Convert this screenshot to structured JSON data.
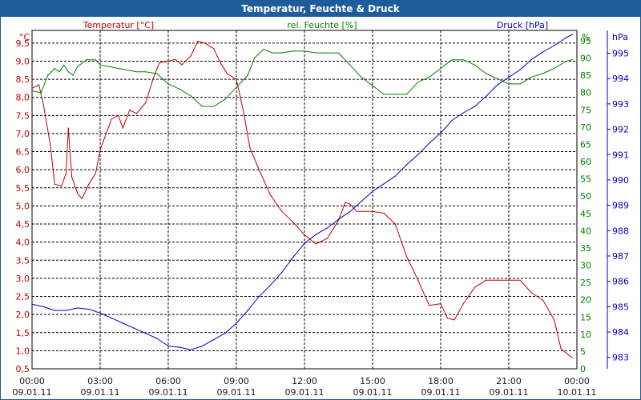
{
  "window": {
    "title": "Temperatur, Feuchte & Druck"
  },
  "chart_data": {
    "type": "line",
    "title": "Temperatur, Feuchte & Druck",
    "colors": {
      "temp": "#c00000",
      "humid": "#008000",
      "press": "#0000c0",
      "title_bg": "#1f5c9a"
    },
    "x_labels": [
      {
        "time": "00:00",
        "date": "09.01.11"
      },
      {
        "time": "03:00",
        "date": "09.01.11"
      },
      {
        "time": "06:00",
        "date": "09.01.11"
      },
      {
        "time": "09:00",
        "date": "09.01.11"
      },
      {
        "time": "12:00",
        "date": "09.01.11"
      },
      {
        "time": "15:00",
        "date": "09.01.11"
      },
      {
        "time": "18:00",
        "date": "09.01.11"
      },
      {
        "time": "21:00",
        "date": "09.01.11"
      },
      {
        "time": "00:00",
        "date": "10.01.11"
      }
    ],
    "x_range_hours": [
      0,
      24
    ],
    "axes": {
      "temp": {
        "unit": "°C",
        "label": "Temperatur [°C]",
        "range": [
          0.5,
          9.85
        ],
        "ticks": [
          "9,5",
          "9,0",
          "8,5",
          "8,0",
          "7,5",
          "7,0",
          "6,5",
          "6,0",
          "5,5",
          "5,0",
          "4,5",
          "4,0",
          "3,5",
          "3,0",
          "2,5",
          "2,0",
          "1,5",
          "1,0",
          "0,5"
        ]
      },
      "humid": {
        "unit": "%",
        "label": "rel. Feuchte [%]",
        "range": [
          0,
          98
        ],
        "ticks": [
          "95",
          "90",
          "85",
          "80",
          "75",
          "70",
          "65",
          "60",
          "55",
          "50",
          "45",
          "40",
          "35",
          "30",
          "25",
          "20",
          "15",
          "10",
          "5",
          "0"
        ]
      },
      "press": {
        "unit": "hPa",
        "label": "Druck [hPa]",
        "range": [
          982.55,
          995.9
        ],
        "ticks": [
          "995",
          "994",
          "993",
          "992",
          "991",
          "990",
          "989",
          "988",
          "987",
          "986",
          "985",
          "984",
          "983"
        ]
      }
    },
    "series": [
      {
        "name": "Temperatur [°C]",
        "axis": "temp",
        "points": [
          [
            0,
            8.25
          ],
          [
            0.3,
            8.35
          ],
          [
            0.5,
            7.8
          ],
          [
            0.8,
            6.7
          ],
          [
            1.0,
            5.6
          ],
          [
            1.3,
            5.55
          ],
          [
            1.5,
            5.9
          ],
          [
            1.6,
            7.15
          ],
          [
            1.75,
            5.8
          ],
          [
            2.0,
            5.35
          ],
          [
            2.2,
            5.2
          ],
          [
            2.5,
            5.6
          ],
          [
            2.8,
            5.9
          ],
          [
            3.0,
            6.55
          ],
          [
            3.5,
            7.4
          ],
          [
            3.8,
            7.5
          ],
          [
            4.0,
            7.15
          ],
          [
            4.3,
            7.65
          ],
          [
            4.6,
            7.55
          ],
          [
            5.0,
            7.85
          ],
          [
            5.3,
            8.45
          ],
          [
            5.6,
            8.95
          ],
          [
            6.0,
            9.0
          ],
          [
            6.3,
            9.05
          ],
          [
            6.6,
            8.9
          ],
          [
            7.0,
            9.15
          ],
          [
            7.3,
            9.55
          ],
          [
            7.6,
            9.5
          ],
          [
            8.0,
            9.35
          ],
          [
            8.3,
            8.95
          ],
          [
            8.6,
            8.65
          ],
          [
            9.0,
            8.5
          ],
          [
            9.3,
            7.65
          ],
          [
            9.6,
            6.6
          ],
          [
            10.0,
            6.0
          ],
          [
            10.5,
            5.3
          ],
          [
            11.0,
            4.85
          ],
          [
            11.5,
            4.55
          ],
          [
            12.0,
            4.2
          ],
          [
            12.5,
            3.95
          ],
          [
            13.0,
            4.1
          ],
          [
            13.5,
            4.6
          ],
          [
            13.8,
            5.1
          ],
          [
            14.0,
            5.05
          ],
          [
            14.3,
            4.85
          ],
          [
            15.0,
            4.85
          ],
          [
            15.5,
            4.8
          ],
          [
            16.0,
            4.5
          ],
          [
            16.5,
            3.6
          ],
          [
            17.0,
            2.95
          ],
          [
            17.5,
            2.25
          ],
          [
            18.0,
            2.3
          ],
          [
            18.3,
            1.9
          ],
          [
            18.6,
            1.85
          ],
          [
            19.0,
            2.3
          ],
          [
            19.5,
            2.75
          ],
          [
            20.0,
            2.95
          ],
          [
            20.5,
            2.95
          ],
          [
            21.0,
            2.95
          ],
          [
            21.5,
            2.95
          ],
          [
            22.0,
            2.6
          ],
          [
            22.5,
            2.4
          ],
          [
            23.0,
            1.85
          ],
          [
            23.3,
            1.05
          ],
          [
            23.6,
            0.9
          ],
          [
            23.8,
            0.8
          ]
        ]
      },
      {
        "name": "rel. Feuchte [%]",
        "axis": "humid",
        "points": [
          [
            0,
            80.5
          ],
          [
            0.4,
            80.0
          ],
          [
            0.7,
            85.0
          ],
          [
            1.0,
            87.0
          ],
          [
            1.2,
            86.0
          ],
          [
            1.4,
            88.0
          ],
          [
            1.6,
            86.0
          ],
          [
            1.8,
            85.0
          ],
          [
            2.0,
            87.5
          ],
          [
            2.4,
            89.5
          ],
          [
            2.8,
            89.5
          ],
          [
            3.0,
            88.0
          ],
          [
            3.4,
            87.5
          ],
          [
            3.8,
            87.0
          ],
          [
            4.2,
            86.5
          ],
          [
            4.6,
            86.0
          ],
          [
            5.0,
            86.0
          ],
          [
            5.5,
            85.5
          ],
          [
            6.0,
            82.5
          ],
          [
            6.5,
            81.0
          ],
          [
            7.0,
            79.0
          ],
          [
            7.5,
            76.0
          ],
          [
            8.0,
            76.0
          ],
          [
            8.5,
            78.0
          ],
          [
            9.0,
            81.5
          ],
          [
            9.5,
            85.0
          ],
          [
            9.8,
            90.0
          ],
          [
            10.2,
            92.5
          ],
          [
            10.6,
            91.5
          ],
          [
            11.0,
            91.5
          ],
          [
            11.5,
            92.0
          ],
          [
            12.0,
            92.0
          ],
          [
            12.5,
            91.5
          ],
          [
            13.0,
            91.5
          ],
          [
            13.5,
            91.5
          ],
          [
            14.0,
            88.0
          ],
          [
            14.5,
            84.5
          ],
          [
            15.0,
            82.0
          ],
          [
            15.5,
            79.5
          ],
          [
            16.0,
            79.5
          ],
          [
            16.5,
            79.5
          ],
          [
            17.0,
            83.0
          ],
          [
            17.5,
            84.5
          ],
          [
            18.0,
            87.0
          ],
          [
            18.5,
            89.5
          ],
          [
            19.0,
            89.5
          ],
          [
            19.5,
            88.0
          ],
          [
            20.0,
            85.5
          ],
          [
            20.5,
            84.0
          ],
          [
            21.0,
            82.5
          ],
          [
            21.5,
            82.5
          ],
          [
            22.0,
            84.5
          ],
          [
            22.5,
            85.5
          ],
          [
            23.0,
            87.0
          ],
          [
            23.5,
            89.0
          ],
          [
            23.8,
            89.5
          ]
        ]
      },
      {
        "name": "Druck [hPa]",
        "axis": "press",
        "points": [
          [
            0,
            985.1
          ],
          [
            0.5,
            985.0
          ],
          [
            1.0,
            984.85
          ],
          [
            1.5,
            984.85
          ],
          [
            2.0,
            984.95
          ],
          [
            2.5,
            984.9
          ],
          [
            3.0,
            984.75
          ],
          [
            3.5,
            984.55
          ],
          [
            4.0,
            984.35
          ],
          [
            4.5,
            984.15
          ],
          [
            5.0,
            983.95
          ],
          [
            5.5,
            983.75
          ],
          [
            6.0,
            983.45
          ],
          [
            6.5,
            983.4
          ],
          [
            7.0,
            983.3
          ],
          [
            7.5,
            983.45
          ],
          [
            8.0,
            983.7
          ],
          [
            8.5,
            983.95
          ],
          [
            9.0,
            984.35
          ],
          [
            9.5,
            984.85
          ],
          [
            10.0,
            985.4
          ],
          [
            10.5,
            985.85
          ],
          [
            11.0,
            986.35
          ],
          [
            11.5,
            986.95
          ],
          [
            12.0,
            987.5
          ],
          [
            12.5,
            987.85
          ],
          [
            13.0,
            988.1
          ],
          [
            13.5,
            988.45
          ],
          [
            14.0,
            988.75
          ],
          [
            14.5,
            989.15
          ],
          [
            15.0,
            989.55
          ],
          [
            15.5,
            989.85
          ],
          [
            16.0,
            990.15
          ],
          [
            16.5,
            990.6
          ],
          [
            17.0,
            991.0
          ],
          [
            17.5,
            991.45
          ],
          [
            18.0,
            991.85
          ],
          [
            18.5,
            992.35
          ],
          [
            19.0,
            992.65
          ],
          [
            19.5,
            992.9
          ],
          [
            20.0,
            993.3
          ],
          [
            20.5,
            993.75
          ],
          [
            21.0,
            994.05
          ],
          [
            21.5,
            994.35
          ],
          [
            22.0,
            994.75
          ],
          [
            22.5,
            995.05
          ],
          [
            23.0,
            995.3
          ],
          [
            23.5,
            995.6
          ],
          [
            23.8,
            995.75
          ]
        ]
      }
    ],
    "grid": true
  }
}
